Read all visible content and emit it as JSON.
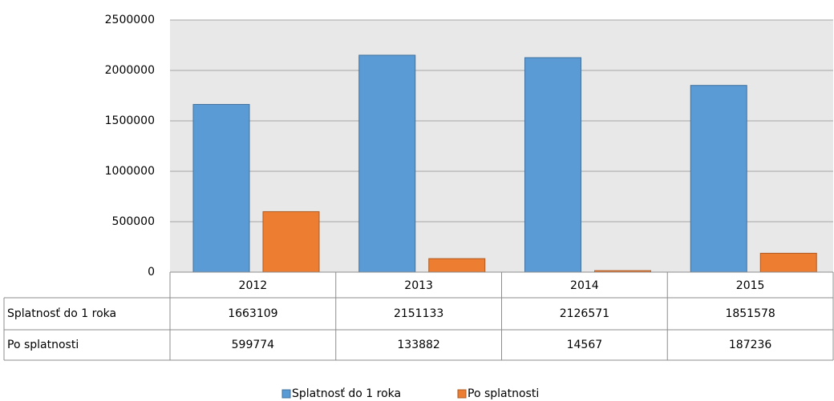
{
  "chart_data": {
    "type": "bar",
    "categories": [
      "2012",
      "2013",
      "2014",
      "2015"
    ],
    "series": [
      {
        "name": "Splatnosť do 1 roka",
        "color": "#5b9bd5",
        "values": [
          1663109,
          2151133,
          2126571,
          1851578
        ]
      },
      {
        "name": "Po splatnosti",
        "color": "#ed7d31",
        "values": [
          599774,
          133882,
          14567,
          187236
        ]
      }
    ],
    "ylim": [
      0,
      2500000
    ],
    "yticks": [
      0,
      500000,
      1000000,
      1500000,
      2000000,
      2500000
    ],
    "grid": true,
    "data_table": true,
    "legend": "bottom"
  }
}
